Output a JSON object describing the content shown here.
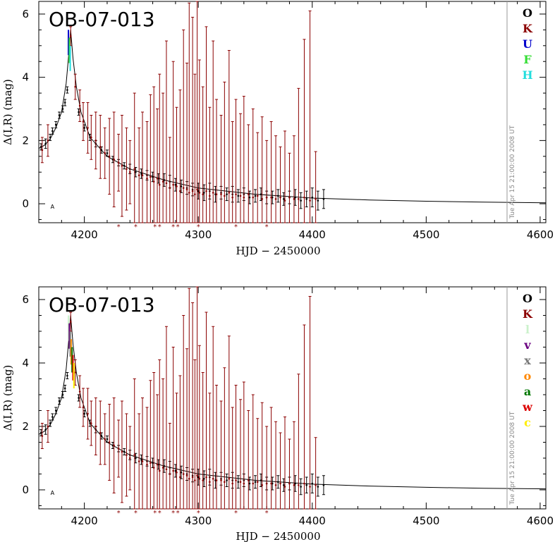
{
  "chart_data": [
    {
      "type": "scatter",
      "title": "OB-07-013",
      "xlabel": "HJD − 2450000",
      "ylabel": "Δ(I,R) (mag)",
      "xlim": [
        4160,
        4605
      ],
      "ylim": [
        -0.6,
        6.4
      ],
      "xticks": [
        "4200",
        "4300",
        "4400",
        "4500",
        "4600"
      ],
      "xtick_values": [
        4200,
        4300,
        4400,
        4500,
        4600
      ],
      "yticks": [
        "0",
        "2",
        "4",
        "6"
      ],
      "ytick_values": [
        0,
        2,
        4,
        6
      ],
      "timestamp": "Tue Apr 15 21:00:00 2008 UT",
      "annotation": "A",
      "legend": [
        {
          "name": "O",
          "color": "#000000"
        },
        {
          "name": "K",
          "color": "#8b0000"
        },
        {
          "name": "U",
          "color": "#0000cc"
        },
        {
          "name": "F",
          "color": "#33dd33"
        },
        {
          "name": "H",
          "color": "#22dddd"
        }
      ],
      "model": {
        "peak_x": 4188,
        "peak_y": 5.5
      },
      "model_curve": {
        "x": [
          4160,
          4165,
          4170,
          4175,
          4180,
          4184,
          4186,
          4188,
          4190,
          4193,
          4197,
          4205,
          4220,
          4240,
          4270,
          4300,
          4350,
          4400,
          4450,
          4500,
          4550,
          4605
        ],
        "y": [
          1.75,
          1.85,
          2.05,
          2.4,
          2.9,
          3.8,
          4.6,
          5.5,
          4.6,
          3.7,
          2.9,
          2.1,
          1.5,
          1.1,
          0.75,
          0.5,
          0.3,
          0.18,
          0.12,
          0.08,
          0.05,
          0.03
        ]
      },
      "series": [
        {
          "name": "O",
          "color": "#000000",
          "x": [
            4162,
            4166,
            4170,
            4172,
            4175,
            4178,
            4181,
            4183,
            4185,
            4195,
            4200,
            4205,
            4210,
            4215,
            4220,
            4225,
            4230,
            4235,
            4240,
            4245,
            4250,
            4255,
            4260,
            4265,
            4270,
            4275,
            4280,
            4285,
            4290,
            4295,
            4300,
            4305,
            4310,
            4315,
            4320,
            4325,
            4330,
            4335,
            4340,
            4345,
            4350,
            4355,
            4360,
            4365,
            4370,
            4375,
            4380,
            4385,
            4390,
            4395,
            4400,
            4405,
            4410
          ],
          "y": [
            1.8,
            1.9,
            2.1,
            2.3,
            2.5,
            2.8,
            3.0,
            3.2,
            3.6,
            2.9,
            2.4,
            2.1,
            1.9,
            1.7,
            1.6,
            1.4,
            1.3,
            1.2,
            1.1,
            1.0,
            0.95,
            0.9,
            0.85,
            0.8,
            0.75,
            0.7,
            0.6,
            0.55,
            0.5,
            0.45,
            0.4,
            0.35,
            0.4,
            0.3,
            0.35,
            0.3,
            0.3,
            0.25,
            0.3,
            0.2,
            0.25,
            0.3,
            0.2,
            0.2,
            0.25,
            0.15,
            0.2,
            0.2,
            0.1,
            0.15,
            0.2,
            0.1,
            0.15
          ],
          "err": [
            0.1,
            0.15,
            0.1,
            0.1,
            0.1,
            0.1,
            0.1,
            0.1,
            0.1,
            0.1,
            0.1,
            0.1,
            0.1,
            0.1,
            0.1,
            0.1,
            0.1,
            0.1,
            0.15,
            0.15,
            0.15,
            0.15,
            0.15,
            0.15,
            0.2,
            0.2,
            0.2,
            0.2,
            0.2,
            0.2,
            0.25,
            0.25,
            0.25,
            0.25,
            0.2,
            0.2,
            0.25,
            0.2,
            0.2,
            0.2,
            0.2,
            0.2,
            0.2,
            0.2,
            0.2,
            0.2,
            0.2,
            0.25,
            0.25,
            0.25,
            0.3,
            0.3,
            0.3
          ]
        },
        {
          "name": "K",
          "color": "#8b0000",
          "x": [
            4163,
            4168,
            4188,
            4192,
            4196,
            4199,
            4203,
            4206,
            4210,
            4214,
            4218,
            4222,
            4226,
            4230,
            4233,
            4237,
            4240,
            4244,
            4248,
            4251,
            4255,
            4258,
            4261,
            4264,
            4266,
            4269,
            4272,
            4275,
            4278,
            4281,
            4284,
            4287,
            4290,
            4292,
            4295,
            4297,
            4299,
            4301,
            4304,
            4307,
            4310,
            4313,
            4316,
            4320,
            4323,
            4327,
            4330,
            4333,
            4337,
            4340,
            4344,
            4348,
            4352,
            4356,
            4360,
            4364,
            4368,
            4372,
            4376,
            4380,
            4384,
            4388,
            4393,
            4398,
            4403
          ],
          "y": [
            1.7,
            2.0,
            5.3,
            3.7,
            3.1,
            2.6,
            2.4,
            2.1,
            2.0,
            1.8,
            1.6,
            1.5,
            1.4,
            1.3,
            1.2,
            1.1,
            1.0,
            1.1,
            0.9,
            0.9,
            0.8,
            0.85,
            0.7,
            0.8,
            0.6,
            0.7,
            0.65,
            0.5,
            0.6,
            0.55,
            0.4,
            0.5,
            0.45,
            0.35,
            0.4,
            0.3,
            0.45,
            0.35,
            0.3,
            0.4,
            0.25,
            0.35,
            0.3,
            0.3,
            0.25,
            0.35,
            0.2,
            0.3,
            0.25,
            0.2,
            0.3,
            0.2,
            0.25,
            0.15,
            0.2,
            0.2,
            0.15,
            0.2,
            0.1,
            0.2,
            0.15,
            0.15,
            0.2,
            0.1,
            0.15
          ],
          "err": [
            0.4,
            0.5,
            0.3,
            0.4,
            0.5,
            0.6,
            0.8,
            0.7,
            0.9,
            1.0,
            0.8,
            1.2,
            1.5,
            0.9,
            1.6,
            1.3,
            1.0,
            2.4,
            1.5,
            2.0,
            1.8,
            2.6,
            3.0,
            2.2,
            3.5,
            2.8,
            4.5,
            1.6,
            3.9,
            2.5,
            3.2,
            5.0,
            4.0,
            6.0,
            5.5,
            3.8,
            6.5,
            4.2,
            3.4,
            5.2,
            2.8,
            4.8,
            3.0,
            2.5,
            3.6,
            4.5,
            2.4,
            3.0,
            2.6,
            3.2,
            2.2,
            2.8,
            2.0,
            2.6,
            1.8,
            2.4,
            2.0,
            1.6,
            2.2,
            1.4,
            2.0,
            3.5,
            5.0,
            6.0,
            1.5
          ]
        }
      ],
      "bad_points_x": [
        4230,
        4245,
        4262,
        4266,
        4278,
        4282,
        4300,
        4333,
        4360
      ]
    },
    {
      "type": "scatter",
      "title": "OB-07-013",
      "xlabel": "HJD − 2450000",
      "ylabel": "Δ(I,R) (mag)",
      "xlim": [
        4160,
        4605
      ],
      "ylim": [
        -0.6,
        6.4
      ],
      "xticks": [
        "4200",
        "4300",
        "4400",
        "4500",
        "4600"
      ],
      "xtick_values": [
        4200,
        4300,
        4400,
        4500,
        4600
      ],
      "yticks": [
        "0",
        "2",
        "4",
        "6"
      ],
      "ytick_values": [
        0,
        2,
        4,
        6
      ],
      "timestamp": "Tue Apr 15 21:00:00 2008 UT",
      "annotation": "A",
      "legend": [
        {
          "name": "O",
          "color": "#000000"
        },
        {
          "name": "K",
          "color": "#8b0000"
        },
        {
          "name": "l",
          "color": "#ccf2cc"
        },
        {
          "name": "v",
          "color": "#6a0080"
        },
        {
          "name": "x",
          "color": "#777777"
        },
        {
          "name": "o",
          "color": "#ff8800"
        },
        {
          "name": "a",
          "color": "#007700"
        },
        {
          "name": "w",
          "color": "#dd0000"
        },
        {
          "name": "c",
          "color": "#ffee00"
        }
      ],
      "model": {
        "peak_x": 4188,
        "peak_y": 5.5
      },
      "model_curve": {
        "x": [
          4160,
          4165,
          4170,
          4175,
          4180,
          4184,
          4186,
          4188,
          4190,
          4193,
          4197,
          4205,
          4220,
          4240,
          4270,
          4300,
          4350,
          4400,
          4450,
          4500,
          4550,
          4605
        ],
        "y": [
          1.75,
          1.85,
          2.05,
          2.4,
          2.9,
          3.8,
          4.6,
          5.5,
          4.6,
          3.7,
          2.9,
          2.1,
          1.5,
          1.1,
          0.75,
          0.5,
          0.3,
          0.18,
          0.12,
          0.08,
          0.05,
          0.03
        ]
      },
      "series": [
        {
          "name": "O",
          "color": "#000000",
          "x": [
            4162,
            4166,
            4170,
            4172,
            4175,
            4178,
            4181,
            4183,
            4185,
            4195,
            4200,
            4205,
            4210,
            4215,
            4220,
            4225,
            4230,
            4235,
            4240,
            4245,
            4250,
            4255,
            4260,
            4265,
            4270,
            4275,
            4280,
            4285,
            4290,
            4295,
            4300,
            4305,
            4310,
            4315,
            4320,
            4325,
            4330,
            4335,
            4340,
            4345,
            4350,
            4355,
            4360,
            4365,
            4370,
            4375,
            4380,
            4385,
            4390,
            4395,
            4400,
            4405,
            4410
          ],
          "y": [
            1.8,
            1.9,
            2.1,
            2.3,
            2.5,
            2.8,
            3.0,
            3.2,
            3.6,
            2.9,
            2.4,
            2.1,
            1.9,
            1.7,
            1.6,
            1.4,
            1.3,
            1.2,
            1.1,
            1.0,
            0.95,
            0.9,
            0.85,
            0.8,
            0.75,
            0.7,
            0.6,
            0.55,
            0.5,
            0.45,
            0.4,
            0.35,
            0.4,
            0.3,
            0.35,
            0.3,
            0.3,
            0.25,
            0.3,
            0.2,
            0.25,
            0.3,
            0.2,
            0.2,
            0.25,
            0.15,
            0.2,
            0.2,
            0.1,
            0.15,
            0.2,
            0.1,
            0.15
          ],
          "err": [
            0.1,
            0.15,
            0.1,
            0.1,
            0.1,
            0.1,
            0.1,
            0.1,
            0.1,
            0.1,
            0.1,
            0.1,
            0.1,
            0.1,
            0.1,
            0.1,
            0.1,
            0.1,
            0.15,
            0.15,
            0.15,
            0.15,
            0.15,
            0.15,
            0.2,
            0.2,
            0.2,
            0.2,
            0.2,
            0.2,
            0.25,
            0.25,
            0.25,
            0.25,
            0.2,
            0.2,
            0.25,
            0.2,
            0.2,
            0.2,
            0.2,
            0.2,
            0.2,
            0.2,
            0.2,
            0.2,
            0.2,
            0.25,
            0.25,
            0.25,
            0.3,
            0.3,
            0.3
          ]
        },
        {
          "name": "K",
          "color": "#8b0000",
          "x": [
            4163,
            4168,
            4188,
            4192,
            4196,
            4199,
            4203,
            4206,
            4210,
            4214,
            4218,
            4222,
            4226,
            4230,
            4233,
            4237,
            4240,
            4244,
            4248,
            4251,
            4255,
            4258,
            4261,
            4264,
            4266,
            4269,
            4272,
            4275,
            4278,
            4281,
            4284,
            4287,
            4290,
            4292,
            4295,
            4297,
            4299,
            4301,
            4304,
            4307,
            4310,
            4313,
            4316,
            4320,
            4323,
            4327,
            4330,
            4333,
            4337,
            4340,
            4344,
            4348,
            4352,
            4356,
            4360,
            4364,
            4368,
            4372,
            4376,
            4380,
            4384,
            4388,
            4393,
            4398,
            4403
          ],
          "y": [
            1.7,
            2.0,
            5.3,
            3.7,
            3.1,
            2.6,
            2.4,
            2.1,
            2.0,
            1.8,
            1.6,
            1.5,
            1.4,
            1.3,
            1.2,
            1.1,
            1.0,
            1.1,
            0.9,
            0.9,
            0.8,
            0.85,
            0.7,
            0.8,
            0.6,
            0.7,
            0.65,
            0.5,
            0.6,
            0.55,
            0.4,
            0.5,
            0.45,
            0.35,
            0.4,
            0.3,
            0.45,
            0.35,
            0.3,
            0.4,
            0.25,
            0.35,
            0.3,
            0.3,
            0.25,
            0.35,
            0.2,
            0.3,
            0.25,
            0.2,
            0.3,
            0.2,
            0.25,
            0.15,
            0.2,
            0.2,
            0.15,
            0.2,
            0.1,
            0.2,
            0.15,
            0.15,
            0.2,
            0.1,
            0.15
          ],
          "err": [
            0.4,
            0.5,
            0.3,
            0.4,
            0.5,
            0.6,
            0.8,
            0.7,
            0.9,
            1.0,
            0.8,
            1.2,
            1.5,
            0.9,
            1.6,
            1.3,
            1.0,
            2.4,
            1.5,
            2.0,
            1.8,
            2.6,
            3.0,
            2.2,
            3.5,
            2.8,
            4.5,
            1.6,
            3.9,
            2.5,
            3.2,
            5.0,
            4.0,
            6.0,
            5.5,
            3.8,
            6.5,
            4.2,
            3.4,
            5.2,
            2.8,
            4.8,
            3.0,
            2.5,
            3.6,
            4.5,
            2.4,
            3.0,
            2.6,
            3.2,
            2.2,
            2.8,
            2.0,
            2.6,
            1.8,
            2.4,
            2.0,
            1.6,
            2.2,
            1.4,
            2.0,
            3.5,
            5.0,
            6.0,
            1.5
          ]
        }
      ],
      "bad_points_x": [
        4230,
        4245,
        4262,
        4266,
        4278,
        4282,
        4300,
        4333,
        4360
      ]
    }
  ]
}
